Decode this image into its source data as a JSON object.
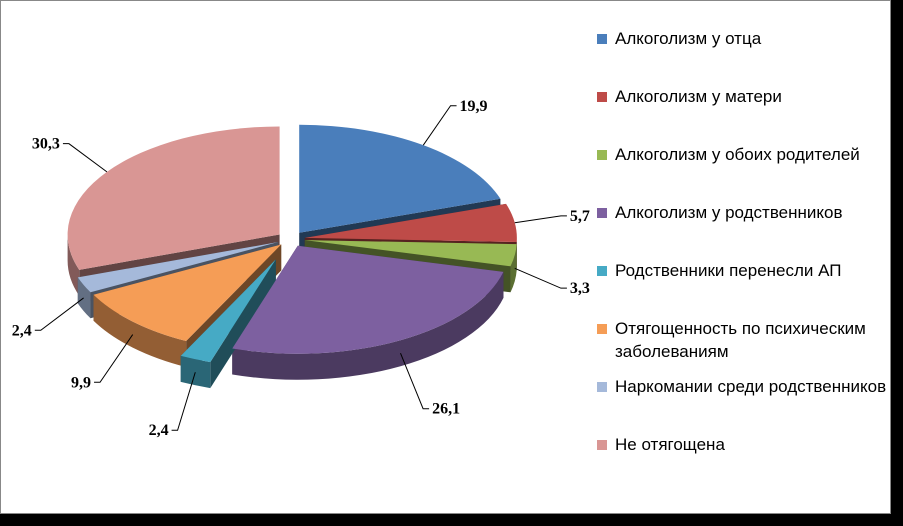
{
  "chart_data": {
    "type": "pie",
    "title": "",
    "slices": [
      {
        "label": "Алкоголизм у отца",
        "value": 19.9,
        "value_label": "19,9",
        "color": "#4A7EBB"
      },
      {
        "label": "Алкоголизм у матери",
        "value": 5.7,
        "value_label": "5,7",
        "color": "#BE4B48"
      },
      {
        "label": "Алкоголизм у обоих родителей",
        "value": 3.3,
        "value_label": "3,3",
        "color": "#98B954"
      },
      {
        "label": "Алкоголизм у родственников",
        "value": 26.1,
        "value_label": "26,1",
        "color": "#7D60A0"
      },
      {
        "label": "Родственники перенесли АП",
        "value": 2.4,
        "value_label": "2,4",
        "color": "#46AAC5"
      },
      {
        "label": "Отягощенность по психическим заболеваниям",
        "value": 9.9,
        "value_label": "9,9",
        "color": "#F59D56"
      },
      {
        "label": "Наркомании среди родственников",
        "value": 2.4,
        "value_label": "2,4",
        "color": "#A5B9DA"
      },
      {
        "label": "Не отягощена",
        "value": 30.3,
        "value_label": "30,3",
        "color": "#D99694"
      }
    ],
    "legend_position": "right",
    "exploded": true,
    "style": "3d"
  }
}
